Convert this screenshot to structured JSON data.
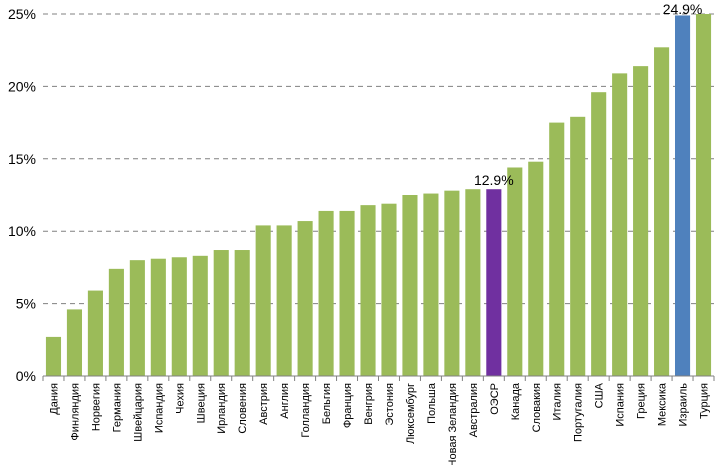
{
  "chart_data": {
    "type": "bar",
    "title": "",
    "xlabel": "",
    "ylabel": "",
    "ylim": [
      0,
      25
    ],
    "y_ticks": [
      0,
      5,
      10,
      15,
      20,
      25
    ],
    "y_tick_labels": [
      "0%",
      "5%",
      "10%",
      "15%",
      "20%",
      "25%"
    ],
    "grid": "horizontal dashed",
    "legend": "none",
    "categories": [
      "Дания",
      "Финляндия",
      "Норвегия",
      "Германия",
      "Швейцария",
      "Испандия",
      "Чехия",
      "Швеция",
      "Ирландия",
      "Словения",
      "Австрия",
      "Англия",
      "Голландия",
      "Бельгия",
      "Франция",
      "Венгрия",
      "Эстония",
      "Люксембург",
      "Польша",
      "Новая Зеландия",
      "Австралия",
      "ОЭСР",
      "Канада",
      "Словакия",
      "Италия",
      "Португалия",
      "США",
      "Испания",
      "Греция",
      "Мексика",
      "Израиль",
      "Турция"
    ],
    "values": [
      2.7,
      4.6,
      5.9,
      7.4,
      8.0,
      8.1,
      8.2,
      8.3,
      8.7,
      8.7,
      10.4,
      10.4,
      10.7,
      11.4,
      11.4,
      11.8,
      11.9,
      12.5,
      12.6,
      12.8,
      12.9,
      12.9,
      14.4,
      14.8,
      17.5,
      17.9,
      19.6,
      20.9,
      21.4,
      22.7,
      24.9,
      25.0
    ],
    "colors": {
      "default": "#9BBB59",
      "highlight_oecd": "#7030A0",
      "highlight_israel": "#4F81BD",
      "grid": "#808080",
      "axis": "#808080"
    },
    "highlights": {
      "ОЭСР": "highlight_oecd",
      "Израиль": "highlight_israel"
    },
    "annotations": [
      {
        "category": "ОЭСР",
        "text": "12.9%"
      },
      {
        "category": "Израиль",
        "text": "24.9%"
      }
    ]
  }
}
